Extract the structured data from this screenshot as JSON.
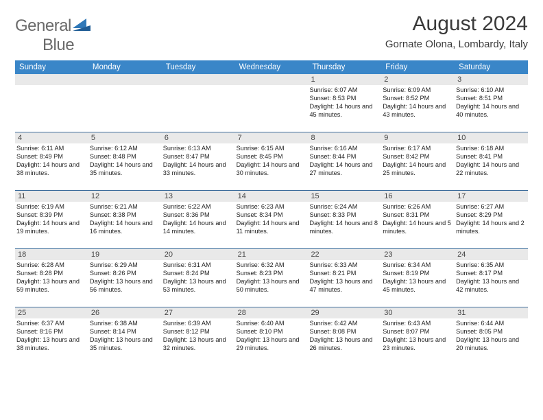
{
  "brand": {
    "text1": "General",
    "text2": "Blue"
  },
  "title": "August 2024",
  "location": "Gornate Olona, Lombardy, Italy",
  "colors": {
    "header_band": "#3a86c8",
    "daynum_bg": "#e9e9e9",
    "week_border": "#3a6b9a",
    "brand_gray": "#6a6a6a",
    "brand_blue": "#2f78b8"
  },
  "dayNames": [
    "Sunday",
    "Monday",
    "Tuesday",
    "Wednesday",
    "Thursday",
    "Friday",
    "Saturday"
  ],
  "weeks": [
    [
      {
        "n": "",
        "sunrise": "",
        "sunset": "",
        "daylight": ""
      },
      {
        "n": "",
        "sunrise": "",
        "sunset": "",
        "daylight": ""
      },
      {
        "n": "",
        "sunrise": "",
        "sunset": "",
        "daylight": ""
      },
      {
        "n": "",
        "sunrise": "",
        "sunset": "",
        "daylight": ""
      },
      {
        "n": "1",
        "sunrise": "Sunrise: 6:07 AM",
        "sunset": "Sunset: 8:53 PM",
        "daylight": "Daylight: 14 hours and 45 minutes."
      },
      {
        "n": "2",
        "sunrise": "Sunrise: 6:09 AM",
        "sunset": "Sunset: 8:52 PM",
        "daylight": "Daylight: 14 hours and 43 minutes."
      },
      {
        "n": "3",
        "sunrise": "Sunrise: 6:10 AM",
        "sunset": "Sunset: 8:51 PM",
        "daylight": "Daylight: 14 hours and 40 minutes."
      }
    ],
    [
      {
        "n": "4",
        "sunrise": "Sunrise: 6:11 AM",
        "sunset": "Sunset: 8:49 PM",
        "daylight": "Daylight: 14 hours and 38 minutes."
      },
      {
        "n": "5",
        "sunrise": "Sunrise: 6:12 AM",
        "sunset": "Sunset: 8:48 PM",
        "daylight": "Daylight: 14 hours and 35 minutes."
      },
      {
        "n": "6",
        "sunrise": "Sunrise: 6:13 AM",
        "sunset": "Sunset: 8:47 PM",
        "daylight": "Daylight: 14 hours and 33 minutes."
      },
      {
        "n": "7",
        "sunrise": "Sunrise: 6:15 AM",
        "sunset": "Sunset: 8:45 PM",
        "daylight": "Daylight: 14 hours and 30 minutes."
      },
      {
        "n": "8",
        "sunrise": "Sunrise: 6:16 AM",
        "sunset": "Sunset: 8:44 PM",
        "daylight": "Daylight: 14 hours and 27 minutes."
      },
      {
        "n": "9",
        "sunrise": "Sunrise: 6:17 AM",
        "sunset": "Sunset: 8:42 PM",
        "daylight": "Daylight: 14 hours and 25 minutes."
      },
      {
        "n": "10",
        "sunrise": "Sunrise: 6:18 AM",
        "sunset": "Sunset: 8:41 PM",
        "daylight": "Daylight: 14 hours and 22 minutes."
      }
    ],
    [
      {
        "n": "11",
        "sunrise": "Sunrise: 6:19 AM",
        "sunset": "Sunset: 8:39 PM",
        "daylight": "Daylight: 14 hours and 19 minutes."
      },
      {
        "n": "12",
        "sunrise": "Sunrise: 6:21 AM",
        "sunset": "Sunset: 8:38 PM",
        "daylight": "Daylight: 14 hours and 16 minutes."
      },
      {
        "n": "13",
        "sunrise": "Sunrise: 6:22 AM",
        "sunset": "Sunset: 8:36 PM",
        "daylight": "Daylight: 14 hours and 14 minutes."
      },
      {
        "n": "14",
        "sunrise": "Sunrise: 6:23 AM",
        "sunset": "Sunset: 8:34 PM",
        "daylight": "Daylight: 14 hours and 11 minutes."
      },
      {
        "n": "15",
        "sunrise": "Sunrise: 6:24 AM",
        "sunset": "Sunset: 8:33 PM",
        "daylight": "Daylight: 14 hours and 8 minutes."
      },
      {
        "n": "16",
        "sunrise": "Sunrise: 6:26 AM",
        "sunset": "Sunset: 8:31 PM",
        "daylight": "Daylight: 14 hours and 5 minutes."
      },
      {
        "n": "17",
        "sunrise": "Sunrise: 6:27 AM",
        "sunset": "Sunset: 8:29 PM",
        "daylight": "Daylight: 14 hours and 2 minutes."
      }
    ],
    [
      {
        "n": "18",
        "sunrise": "Sunrise: 6:28 AM",
        "sunset": "Sunset: 8:28 PM",
        "daylight": "Daylight: 13 hours and 59 minutes."
      },
      {
        "n": "19",
        "sunrise": "Sunrise: 6:29 AM",
        "sunset": "Sunset: 8:26 PM",
        "daylight": "Daylight: 13 hours and 56 minutes."
      },
      {
        "n": "20",
        "sunrise": "Sunrise: 6:31 AM",
        "sunset": "Sunset: 8:24 PM",
        "daylight": "Daylight: 13 hours and 53 minutes."
      },
      {
        "n": "21",
        "sunrise": "Sunrise: 6:32 AM",
        "sunset": "Sunset: 8:23 PM",
        "daylight": "Daylight: 13 hours and 50 minutes."
      },
      {
        "n": "22",
        "sunrise": "Sunrise: 6:33 AM",
        "sunset": "Sunset: 8:21 PM",
        "daylight": "Daylight: 13 hours and 47 minutes."
      },
      {
        "n": "23",
        "sunrise": "Sunrise: 6:34 AM",
        "sunset": "Sunset: 8:19 PM",
        "daylight": "Daylight: 13 hours and 45 minutes."
      },
      {
        "n": "24",
        "sunrise": "Sunrise: 6:35 AM",
        "sunset": "Sunset: 8:17 PM",
        "daylight": "Daylight: 13 hours and 42 minutes."
      }
    ],
    [
      {
        "n": "25",
        "sunrise": "Sunrise: 6:37 AM",
        "sunset": "Sunset: 8:16 PM",
        "daylight": "Daylight: 13 hours and 38 minutes."
      },
      {
        "n": "26",
        "sunrise": "Sunrise: 6:38 AM",
        "sunset": "Sunset: 8:14 PM",
        "daylight": "Daylight: 13 hours and 35 minutes."
      },
      {
        "n": "27",
        "sunrise": "Sunrise: 6:39 AM",
        "sunset": "Sunset: 8:12 PM",
        "daylight": "Daylight: 13 hours and 32 minutes."
      },
      {
        "n": "28",
        "sunrise": "Sunrise: 6:40 AM",
        "sunset": "Sunset: 8:10 PM",
        "daylight": "Daylight: 13 hours and 29 minutes."
      },
      {
        "n": "29",
        "sunrise": "Sunrise: 6:42 AM",
        "sunset": "Sunset: 8:08 PM",
        "daylight": "Daylight: 13 hours and 26 minutes."
      },
      {
        "n": "30",
        "sunrise": "Sunrise: 6:43 AM",
        "sunset": "Sunset: 8:07 PM",
        "daylight": "Daylight: 13 hours and 23 minutes."
      },
      {
        "n": "31",
        "sunrise": "Sunrise: 6:44 AM",
        "sunset": "Sunset: 8:05 PM",
        "daylight": "Daylight: 13 hours and 20 minutes."
      }
    ]
  ]
}
